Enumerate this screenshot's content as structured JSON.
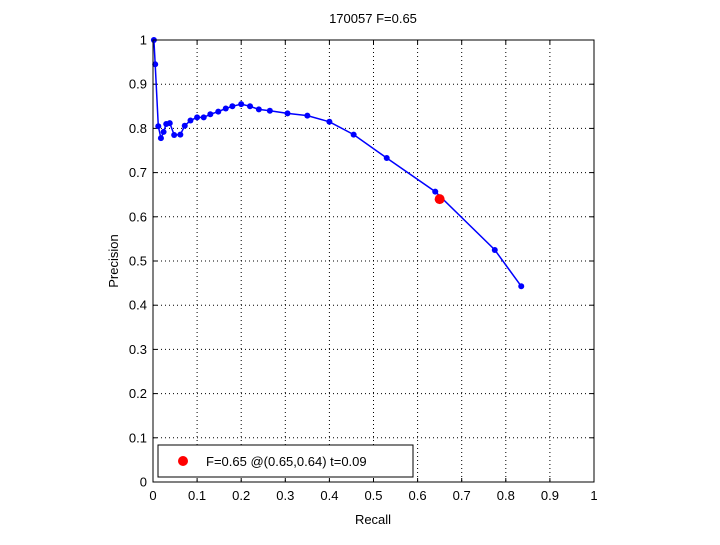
{
  "chart_data": {
    "type": "line",
    "title": "170057 F=0.65",
    "xlabel": "Recall",
    "ylabel": "Precision",
    "xlim": [
      0,
      1
    ],
    "ylim": [
      0,
      1
    ],
    "grid": true,
    "legend_placement": "bottom-left",
    "x_ticks": [
      "0",
      "0.1",
      "0.2",
      "0.3",
      "0.4",
      "0.5",
      "0.6",
      "0.7",
      "0.8",
      "0.9",
      "1"
    ],
    "y_ticks": [
      "0",
      "0.1",
      "0.2",
      "0.3",
      "0.4",
      "0.5",
      "0.6",
      "0.7",
      "0.8",
      "0.9",
      "1"
    ],
    "series": [
      {
        "color": "#0000ff",
        "marker": "dot",
        "x": [
          0.002,
          0.005,
          0.012,
          0.018,
          0.024,
          0.03,
          0.038,
          0.048,
          0.062,
          0.072,
          0.085,
          0.1,
          0.115,
          0.13,
          0.148,
          0.165,
          0.18,
          0.2,
          0.22,
          0.24,
          0.265,
          0.305,
          0.35,
          0.4,
          0.455,
          0.53,
          0.64,
          0.775,
          0.835
        ],
        "y": [
          1.0,
          0.945,
          0.805,
          0.778,
          0.792,
          0.81,
          0.812,
          0.785,
          0.786,
          0.806,
          0.818,
          0.825,
          0.825,
          0.832,
          0.838,
          0.845,
          0.85,
          0.855,
          0.85,
          0.843,
          0.84,
          0.834,
          0.829,
          0.815,
          0.786,
          0.733,
          0.657,
          0.525,
          0.443
        ]
      }
    ],
    "highlight_point": {
      "x": 0.65,
      "y": 0.64,
      "color": "#ff0000"
    },
    "legend": {
      "entries": [
        {
          "label": "F=0.65 @(0.65,0.64) t=0.09",
          "color": "#ff0000",
          "marker": "dot"
        }
      ]
    }
  }
}
